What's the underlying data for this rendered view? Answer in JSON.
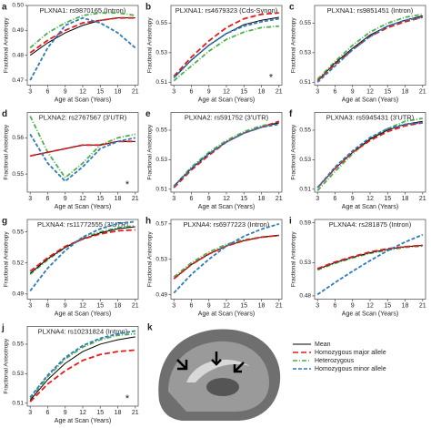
{
  "legend": {
    "entries": [
      {
        "name": "Mean",
        "color": "#000000",
        "dash": ""
      },
      {
        "name": "Homozygous major allele",
        "color": "#e41a1c",
        "dash": "6,3"
      },
      {
        "name": "Heterozygous",
        "color": "#4daf4a",
        "dash": "5,2,1,2"
      },
      {
        "name": "Homozygous minor allele",
        "color": "#2b7bba",
        "dash": "4,2"
      }
    ]
  },
  "panel_k": {
    "label": "k"
  },
  "chart_data": [
    {
      "type": "line",
      "label": "a",
      "title": "PLXNA1: rs9870165 (Intron)",
      "xlabel": "Age at Scan (Years)",
      "ylabel": "Fractional Anisotropy",
      "x": [
        3,
        6,
        9,
        12,
        15,
        18,
        21
      ],
      "xlim": [
        2.5,
        21.5
      ],
      "xticks": [
        3,
        6,
        9,
        12,
        15,
        18,
        21
      ],
      "ylim": [
        0.468,
        0.5
      ],
      "yticks": [
        0.47,
        0.48,
        0.49,
        {
          "value": 0.5,
          "label": "0.50"
        }
      ],
      "series": [
        {
          "values": [
            0.48,
            0.485,
            0.489,
            0.492,
            0.494,
            0.495,
            0.495
          ]
        },
        {
          "values": [
            0.481,
            0.486,
            0.49,
            0.493,
            0.494,
            0.495,
            0.495
          ]
        },
        {
          "values": [
            0.483,
            0.489,
            0.493,
            0.496,
            0.497,
            0.497,
            0.496
          ]
        },
        {
          "values": [
            0.47,
            0.483,
            0.492,
            0.495,
            0.493,
            0.489,
            0.483
          ]
        }
      ]
    },
    {
      "type": "line",
      "label": "b",
      "title": "PLXNA1: rs4679323 (Cds-Synon)",
      "xlabel": "Age at Scan (Years)",
      "ylabel": "Fractional Anisotropy",
      "annotation": "*",
      "x": [
        3,
        6,
        9,
        12,
        15,
        18,
        21
      ],
      "xlim": [
        2.5,
        21.5
      ],
      "xticks": [
        3,
        6,
        9,
        12,
        15,
        18,
        21
      ],
      "ylim": [
        0.508,
        0.562
      ],
      "yticks": [
        0.51,
        0.53,
        0.55
      ],
      "series": [
        {
          "values": [
            0.513,
            0.525,
            0.535,
            0.543,
            0.549,
            0.552,
            0.554
          ]
        },
        {
          "values": [
            0.514,
            0.527,
            0.538,
            0.547,
            0.553,
            0.556,
            0.557
          ]
        },
        {
          "values": [
            0.511,
            0.521,
            0.531,
            0.539,
            0.544,
            0.547,
            0.548
          ]
        },
        {
          "values": [
            0.513,
            0.525,
            0.535,
            0.543,
            0.548,
            0.551,
            0.553
          ]
        }
      ]
    },
    {
      "type": "line",
      "label": "c",
      "title": "PLXNA1: rs9851451 (Intron)",
      "xlabel": "Age at Scan (Years)",
      "ylabel": "Fractional Anisotropy",
      "x": [
        3,
        6,
        9,
        12,
        15,
        18,
        21
      ],
      "xlim": [
        2.5,
        21.5
      ],
      "xticks": [
        3,
        6,
        9,
        12,
        15,
        18,
        21
      ],
      "ylim": [
        0.508,
        0.562
      ],
      "yticks": [
        0.51,
        0.53,
        0.55
      ],
      "series": [
        {
          "values": [
            0.511,
            0.523,
            0.533,
            0.542,
            0.548,
            0.552,
            0.555
          ]
        },
        {
          "values": [
            0.511,
            0.522,
            0.532,
            0.541,
            0.547,
            0.551,
            0.554
          ]
        },
        {
          "values": [
            0.512,
            0.524,
            0.535,
            0.544,
            0.55,
            0.554,
            0.556
          ]
        },
        {
          "values": [
            0.51,
            0.521,
            0.532,
            0.541,
            0.548,
            0.552,
            0.554
          ]
        }
      ]
    },
    {
      "type": "line",
      "label": "d",
      "title": "PLXNA2: rs2767567 (3'UTR)",
      "xlabel": "Age at Scan (Years)",
      "ylabel": "Fractional Anisotropy",
      "annotation": "*",
      "x": [
        3,
        6,
        9,
        12,
        15,
        18,
        21
      ],
      "xlim": [
        2.5,
        21.5
      ],
      "xticks": [
        3,
        6,
        9,
        12,
        15,
        18,
        21
      ],
      "ylim": [
        0.545,
        0.567
      ],
      "yticks": [
        0.55,
        0.56
      ],
      "series": [
        {
          "values": [
            0.555,
            0.556,
            0.557,
            0.558,
            0.558,
            0.559,
            0.559
          ]
        },
        {
          "values": [
            0.555,
            0.556,
            0.557,
            0.558,
            0.558,
            0.559,
            0.559
          ]
        },
        {
          "values": [
            0.566,
            0.556,
            0.549,
            0.553,
            0.558,
            0.56,
            0.561
          ]
        },
        {
          "values": [
            0.561,
            0.553,
            0.548,
            0.552,
            0.557,
            0.559,
            0.56
          ]
        }
      ]
    },
    {
      "type": "line",
      "label": "e",
      "title": "PLXNA2: rs591752 (3'UTR)",
      "xlabel": "Age at Scan (Years)",
      "ylabel": "Fractional Anisotropy",
      "x": [
        3,
        6,
        9,
        12,
        15,
        18,
        21
      ],
      "xlim": [
        2.5,
        21.5
      ],
      "xticks": [
        3,
        6,
        9,
        12,
        15,
        18,
        21
      ],
      "ylim": [
        0.508,
        0.562
      ],
      "yticks": [
        0.51,
        0.53,
        0.55
      ],
      "series": [
        {
          "values": [
            0.512,
            0.524,
            0.534,
            0.542,
            0.548,
            0.552,
            0.555
          ]
        },
        {
          "values": [
            0.511,
            0.523,
            0.533,
            0.542,
            0.548,
            0.552,
            0.556
          ]
        },
        {
          "values": [
            0.512,
            0.525,
            0.535,
            0.543,
            0.549,
            0.553,
            0.555
          ]
        },
        {
          "values": [
            0.512,
            0.524,
            0.534,
            0.542,
            0.548,
            0.552,
            0.554
          ]
        }
      ]
    },
    {
      "type": "line",
      "label": "f",
      "title": "PLXNA3: rs5945431 (3'UTR)",
      "xlabel": "Age at Scan (Years)",
      "ylabel": "Fractional Anisotropy",
      "x": [
        3,
        6,
        9,
        12,
        15,
        18,
        21
      ],
      "xlim": [
        2.5,
        21.5
      ],
      "xticks": [
        3,
        6,
        9,
        12,
        15,
        18,
        21
      ],
      "ylim": [
        0.508,
        0.562
      ],
      "yticks": [
        0.51,
        0.53,
        0.55
      ],
      "series": [
        {
          "values": [
            0.511,
            0.524,
            0.535,
            0.544,
            0.55,
            0.554,
            0.556
          ]
        },
        {
          "values": [
            0.511,
            0.524,
            0.535,
            0.543,
            0.549,
            0.553,
            0.555
          ]
        },
        {
          "values": [
            0.509,
            0.522,
            0.534,
            0.544,
            0.551,
            0.556,
            0.558
          ]
        },
        {
          "values": [
            0.511,
            0.525,
            0.536,
            0.545,
            0.551,
            0.554,
            0.555
          ]
        }
      ]
    },
    {
      "type": "line",
      "label": "g",
      "title": "PLXNA4: rs11772555 (3'UTR)",
      "xlabel": "Age at Scan (Years)",
      "ylabel": "Fractional Anisotropy",
      "x": [
        3,
        6,
        9,
        12,
        15,
        18,
        21
      ],
      "xlim": [
        2.5,
        21.5
      ],
      "xticks": [
        3,
        6,
        9,
        12,
        15,
        18,
        21
      ],
      "ylim": [
        0.485,
        0.562
      ],
      "yticks": [
        0.49,
        0.52,
        0.55
      ],
      "series": [
        {
          "values": [
            0.51,
            0.524,
            0.535,
            0.543,
            0.549,
            0.553,
            0.555
          ]
        },
        {
          "values": [
            0.512,
            0.525,
            0.536,
            0.543,
            0.548,
            0.551,
            0.552
          ]
        },
        {
          "values": [
            0.509,
            0.523,
            0.535,
            0.544,
            0.55,
            0.554,
            0.556
          ]
        },
        {
          "values": [
            0.493,
            0.515,
            0.532,
            0.545,
            0.553,
            0.558,
            0.56
          ]
        }
      ]
    },
    {
      "type": "line",
      "label": "h",
      "title": "PLXNA4: rs6977223 (Intron)",
      "xlabel": "Age at Scan (Years)",
      "ylabel": "Fractional Anisotropy",
      "x": [
        3,
        6,
        9,
        12,
        15,
        18,
        21
      ],
      "xlim": [
        2.5,
        21.5
      ],
      "xticks": [
        3,
        6,
        9,
        12,
        15,
        18,
        21
      ],
      "ylim": [
        0.485,
        0.575
      ],
      "yticks": [
        0.49,
        0.53,
        0.57
      ],
      "series": [
        {
          "values": [
            0.508,
            0.524,
            0.536,
            0.545,
            0.551,
            0.555,
            0.557
          ]
        },
        {
          "values": [
            0.508,
            0.524,
            0.536,
            0.545,
            0.551,
            0.555,
            0.557
          ]
        },
        {
          "values": [
            0.51,
            0.526,
            0.538,
            0.547,
            0.552,
            0.555,
            0.557
          ]
        },
        {
          "values": [
            0.492,
            0.513,
            0.53,
            0.545,
            0.556,
            0.564,
            0.57
          ]
        }
      ]
    },
    {
      "type": "line",
      "label": "i",
      "title": "PLXNA4: rs281875 (Intron)",
      "xlabel": "Age at Scan (Years)",
      "ylabel": "Fractional Anisotropy",
      "x": [
        3,
        6,
        9,
        12,
        15,
        18,
        21
      ],
      "xlim": [
        2.5,
        21.5
      ],
      "xticks": [
        3,
        6,
        9,
        12,
        15,
        18,
        21
      ],
      "ylim": [
        0.475,
        0.595
      ],
      "yticks": [
        0.48,
        0.53,
        0.59
      ],
      "series": [
        {
          "values": [
            0.52,
            0.53,
            0.538,
            0.545,
            0.55,
            0.554,
            0.556
          ]
        },
        {
          "values": [
            0.521,
            0.531,
            0.539,
            0.546,
            0.551,
            0.554,
            0.556
          ]
        },
        {
          "values": [
            0.519,
            0.529,
            0.537,
            0.544,
            0.549,
            0.553,
            0.555
          ]
        },
        {
          "values": [
            0.482,
            0.5,
            0.517,
            0.533,
            0.548,
            0.561,
            0.572
          ]
        }
      ]
    },
    {
      "type": "line",
      "label": "j",
      "title": "PLXNA4: rs10231824 (Intron)",
      "xlabel": "Age at Scan (Years)",
      "ylabel": "Fractional Anisotropy",
      "annotation": "*",
      "x": [
        3,
        6,
        9,
        12,
        15,
        18,
        21
      ],
      "xlim": [
        2.5,
        21.5
      ],
      "xticks": [
        3,
        6,
        9,
        12,
        15,
        18,
        21
      ],
      "ylim": [
        0.508,
        0.562
      ],
      "yticks": [
        0.51,
        0.53,
        0.55
      ],
      "series": [
        {
          "values": [
            0.512,
            0.526,
            0.537,
            0.545,
            0.55,
            0.553,
            0.555
          ]
        },
        {
          "values": [
            0.511,
            0.523,
            0.532,
            0.539,
            0.543,
            0.545,
            0.546
          ]
        },
        {
          "values": [
            0.513,
            0.528,
            0.54,
            0.548,
            0.553,
            0.556,
            0.557
          ]
        },
        {
          "values": [
            0.514,
            0.529,
            0.541,
            0.549,
            0.554,
            0.557,
            0.559
          ]
        }
      ]
    }
  ]
}
